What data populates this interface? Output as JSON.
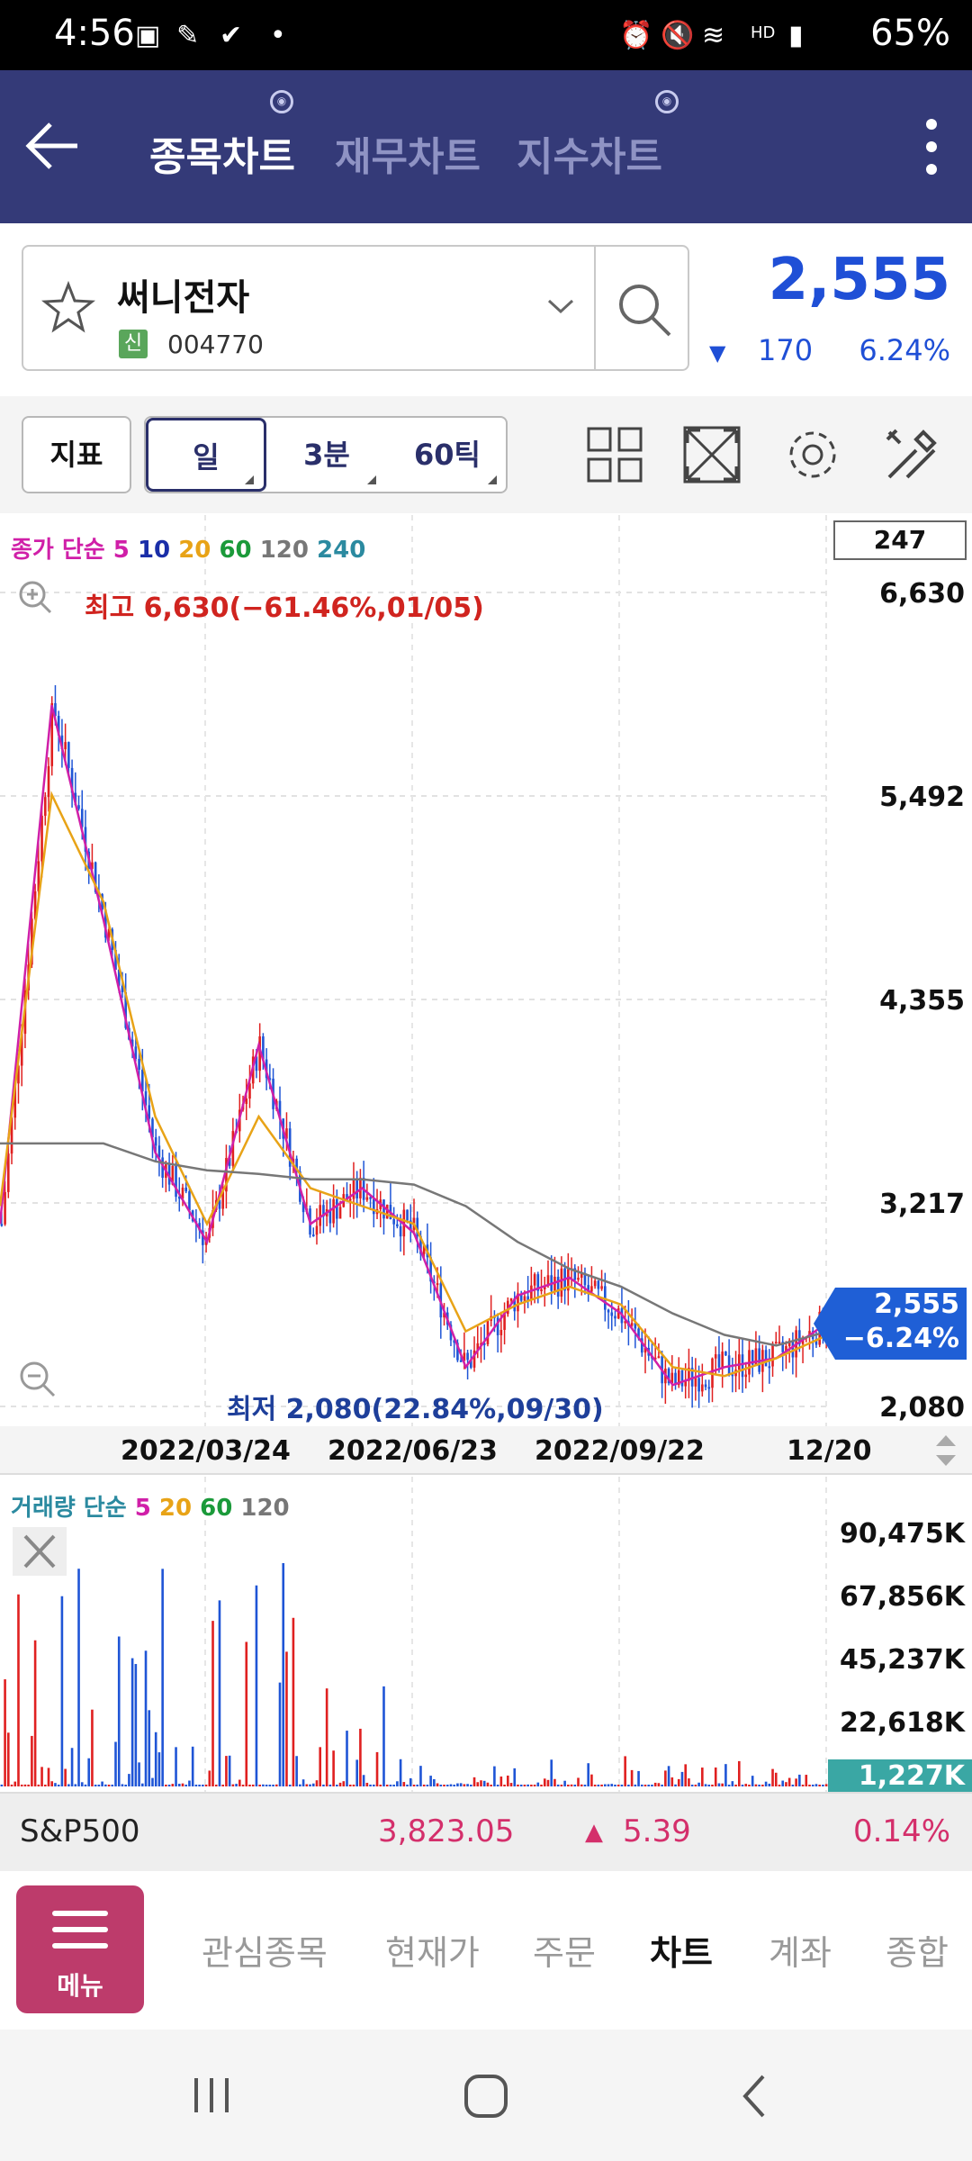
{
  "status_bar": {
    "time": "4:56",
    "battery": "65%"
  },
  "header": {
    "tabs": [
      {
        "label": "종목차트",
        "active": true
      },
      {
        "label": "재무차트",
        "active": false
      },
      {
        "label": "지수차트",
        "active": false
      }
    ]
  },
  "stock": {
    "name": "써니전자",
    "badge": "신",
    "code": "004770",
    "price": "2,555",
    "change": "170",
    "change_pct": "6.24%",
    "change_color": "#1f4fd6"
  },
  "toolbar": {
    "indicator_label": "지표",
    "periods": [
      "일",
      "3분",
      "60틱"
    ],
    "active_period": "일",
    "icons": [
      "layout-icon",
      "fullscreen-icon",
      "settings-icon",
      "tools-icon"
    ]
  },
  "chart": {
    "period_count": "247",
    "price_legend": {
      "prefix": "종가 단순",
      "items": [
        {
          "label": "5",
          "color": "#d01fa8"
        },
        {
          "label": "10",
          "color": "#1a2ea8"
        },
        {
          "label": "20",
          "color": "#e8a317"
        },
        {
          "label": "60",
          "color": "#1b9a3a"
        },
        {
          "label": "120",
          "color": "#777777"
        },
        {
          "label": "240",
          "color": "#2b8aa0"
        }
      ]
    },
    "price_axis": [
      "6,630",
      "5,492",
      "4,355",
      "3,217",
      "2,080"
    ],
    "high_label": "최고 6,630(−61.46%,01/05)",
    "low_label": "최저 2,080(22.84%,09/30)",
    "current_tag": {
      "price": "2,555",
      "pct": "−6.24%"
    },
    "x_axis": [
      "2022/03/24",
      "2022/06/23",
      "2022/09/22",
      "12/20"
    ],
    "volume_legend": {
      "prefix": "거래량 단순",
      "items": [
        {
          "label": "5",
          "color": "#d01fa8"
        },
        {
          "label": "20",
          "color": "#e8a317"
        },
        {
          "label": "60",
          "color": "#1b9a3a"
        },
        {
          "label": "120",
          "color": "#777777"
        }
      ]
    },
    "volume_axis": [
      "90,475K",
      "67,856K",
      "45,237K",
      "22,618K"
    ],
    "volume_current": "1,227K",
    "colors": {
      "up": "#e02020",
      "down": "#1f55d6"
    }
  },
  "chart_data": {
    "type": "candlestick",
    "title": "써니전자",
    "ylim": [
      2080,
      6630
    ],
    "x_ticks": [
      "2022/03/24",
      "2022/06/23",
      "2022/09/22",
      "12/20"
    ],
    "series": [
      {
        "name": "5",
        "values": [
          3100,
          6000,
          4800,
          3500,
          3000,
          4100,
          3100,
          3300,
          3050,
          2300,
          2700,
          2800,
          2600,
          2200,
          2300,
          2350,
          2550
        ]
      },
      {
        "name": "20",
        "values": [
          3200,
          5500,
          4900,
          3700,
          3100,
          3700,
          3300,
          3200,
          3100,
          2500,
          2650,
          2750,
          2650,
          2300,
          2250,
          2350,
          2480
        ]
      },
      {
        "name": "120",
        "values": [
          3550,
          3550,
          3550,
          3450,
          3400,
          3380,
          3350,
          3350,
          3320,
          3200,
          3000,
          2850,
          2750,
          2600,
          2480,
          2420,
          2500
        ]
      }
    ],
    "high": {
      "value": 6630,
      "date": "01/05"
    },
    "low": {
      "value": 2080,
      "date": "09/30"
    },
    "last_close": 2555
  },
  "index_bar": {
    "name": "S&P500",
    "value": "3,823.05",
    "change": "5.39",
    "pct": "0.14%"
  },
  "bottom_nav": {
    "menu_label": "메뉴",
    "items": [
      {
        "label": "관심종목",
        "active": false
      },
      {
        "label": "현재가",
        "active": false
      },
      {
        "label": "주문",
        "active": false
      },
      {
        "label": "차트",
        "active": true
      },
      {
        "label": "계좌",
        "active": false
      },
      {
        "label": "종합",
        "active": false
      }
    ]
  }
}
